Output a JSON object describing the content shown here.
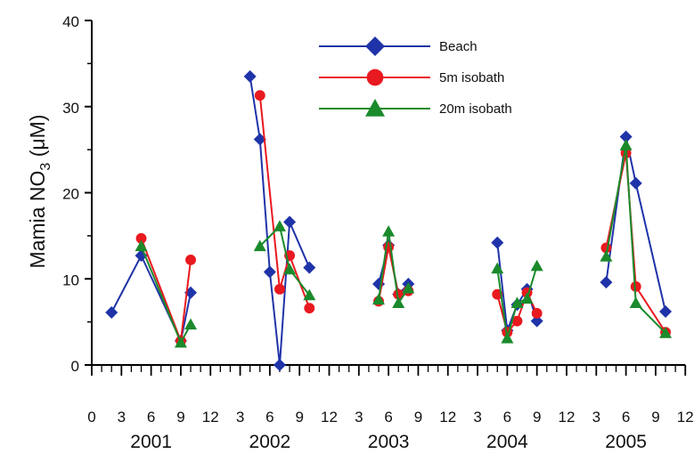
{
  "chart_data": {
    "type": "line",
    "ylabel": "Mamia NO",
    "ylabel_sub": "3",
    "ylabel_unit": " (μM)",
    "ylim": [
      0,
      40
    ],
    "yticks": [
      0,
      10,
      20,
      30,
      40
    ],
    "years": [
      "2001",
      "2002",
      "2003",
      "2004",
      "2005"
    ],
    "month_ticks": [
      0,
      3,
      6,
      9,
      12
    ],
    "grid": false,
    "legend_position": "top-right",
    "series": [
      {
        "name": "Beach",
        "color": "#1f33a8",
        "marker": "diamond",
        "points": [
          {
            "year": 2001,
            "month": 2,
            "value": 6.1
          },
          {
            "year": 2001,
            "month": 5,
            "value": 12.7
          },
          {
            "year": 2001,
            "month": 9,
            "value": 2.8
          },
          {
            "year": 2001,
            "month": 10,
            "value": 8.4
          },
          {
            "year": 2002,
            "month": 4,
            "value": 33.5
          },
          {
            "year": 2002,
            "month": 5,
            "value": 26.2
          },
          {
            "year": 2002,
            "month": 6,
            "value": 10.8
          },
          {
            "year": 2002,
            "month": 7,
            "value": 0
          },
          {
            "year": 2002,
            "month": 8,
            "value": 16.6
          },
          {
            "year": 2002,
            "month": 10,
            "value": 11.3
          },
          {
            "year": 2003,
            "month": 5,
            "value": 9.4
          },
          {
            "year": 2003,
            "month": 6,
            "value": 13.9
          },
          {
            "year": 2003,
            "month": 7,
            "value": 8.2
          },
          {
            "year": 2003,
            "month": 8,
            "value": 9.4
          },
          {
            "year": 2004,
            "month": 5,
            "value": 14.2
          },
          {
            "year": 2004,
            "month": 6,
            "value": 4.0
          },
          {
            "year": 2004,
            "month": 7,
            "value": 7.0
          },
          {
            "year": 2004,
            "month": 8,
            "value": 8.8
          },
          {
            "year": 2004,
            "month": 9,
            "value": 5.1
          },
          {
            "year": 2005,
            "month": 4,
            "value": 9.6
          },
          {
            "year": 2005,
            "month": 6,
            "value": 26.5
          },
          {
            "year": 2005,
            "month": 7,
            "value": 21.1
          },
          {
            "year": 2005,
            "month": 10,
            "value": 6.2
          }
        ]
      },
      {
        "name": "5m isobath",
        "color": "#e8191f",
        "marker": "circle",
        "points": [
          {
            "year": 2001,
            "month": 5,
            "value": 14.7
          },
          {
            "year": 2001,
            "month": 9,
            "value": 2.8
          },
          {
            "year": 2001,
            "month": 10,
            "value": 12.2
          },
          {
            "year": 2002,
            "month": 5,
            "value": 31.3
          },
          {
            "year": 2002,
            "month": 7,
            "value": 8.8
          },
          {
            "year": 2002,
            "month": 8,
            "value": 12.7
          },
          {
            "year": 2002,
            "month": 10,
            "value": 6.6
          },
          {
            "year": 2003,
            "month": 5,
            "value": 7.4
          },
          {
            "year": 2003,
            "month": 6,
            "value": 13.7
          },
          {
            "year": 2003,
            "month": 7,
            "value": 8.2
          },
          {
            "year": 2003,
            "month": 8,
            "value": 8.6
          },
          {
            "year": 2004,
            "month": 5,
            "value": 8.2
          },
          {
            "year": 2004,
            "month": 6,
            "value": 3.8
          },
          {
            "year": 2004,
            "month": 7,
            "value": 5.1
          },
          {
            "year": 2004,
            "month": 8,
            "value": 8.4
          },
          {
            "year": 2004,
            "month": 9,
            "value": 6.0
          },
          {
            "year": 2005,
            "month": 4,
            "value": 13.6
          },
          {
            "year": 2005,
            "month": 6,
            "value": 24.6
          },
          {
            "year": 2005,
            "month": 7,
            "value": 9.1
          },
          {
            "year": 2005,
            "month": 10,
            "value": 3.8
          }
        ]
      },
      {
        "name": "20m isobath",
        "color": "#1a8a2b",
        "marker": "triangle",
        "points": [
          {
            "year": 2001,
            "month": 5,
            "value": 13.8
          },
          {
            "year": 2001,
            "month": 9,
            "value": 2.6
          },
          {
            "year": 2001,
            "month": 10,
            "value": 4.7
          },
          {
            "year": 2002,
            "month": 5,
            "value": 13.8
          },
          {
            "year": 2002,
            "month": 7,
            "value": 16.1
          },
          {
            "year": 2002,
            "month": 8,
            "value": 11.1
          },
          {
            "year": 2002,
            "month": 10,
            "value": 8.1
          },
          {
            "year": 2003,
            "month": 5,
            "value": 7.6
          },
          {
            "year": 2003,
            "month": 6,
            "value": 15.5
          },
          {
            "year": 2003,
            "month": 7,
            "value": 7.2
          },
          {
            "year": 2003,
            "month": 8,
            "value": 8.9
          },
          {
            "year": 2004,
            "month": 5,
            "value": 11.2
          },
          {
            "year": 2004,
            "month": 6,
            "value": 3.1
          },
          {
            "year": 2004,
            "month": 7,
            "value": 7.2
          },
          {
            "year": 2004,
            "month": 8,
            "value": 7.7
          },
          {
            "year": 2004,
            "month": 9,
            "value": 11.5
          },
          {
            "year": 2005,
            "month": 4,
            "value": 12.6
          },
          {
            "year": 2005,
            "month": 6,
            "value": 25.5
          },
          {
            "year": 2005,
            "month": 7,
            "value": 7.2
          },
          {
            "year": 2005,
            "month": 10,
            "value": 3.7
          }
        ]
      }
    ]
  }
}
